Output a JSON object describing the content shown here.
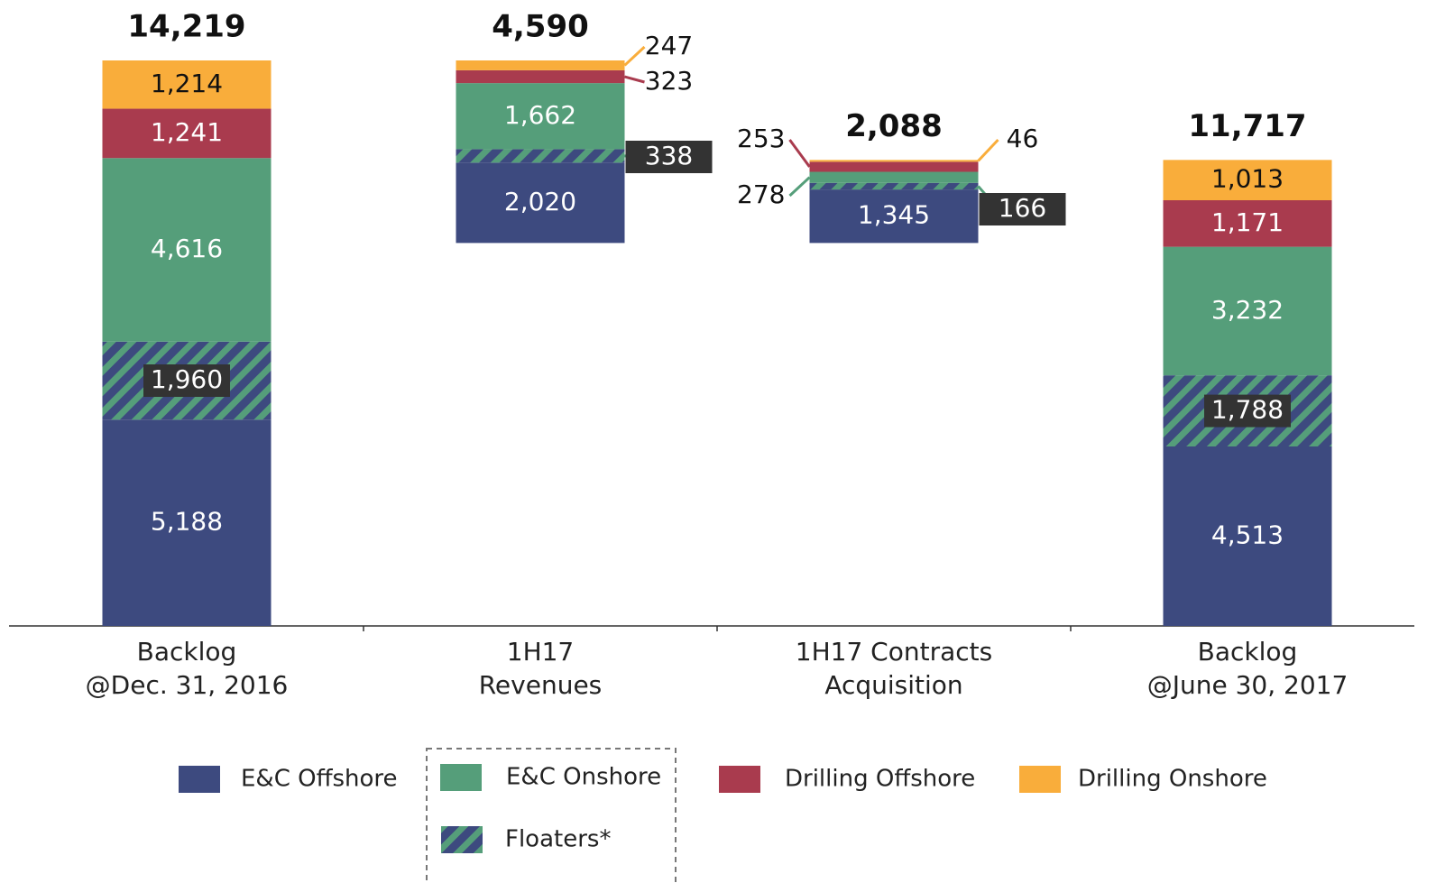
{
  "chart_data": {
    "type": "waterfall",
    "categories": [
      [
        "Backlog",
        "@Dec. 31, 2016"
      ],
      [
        "1H17",
        "Revenues"
      ],
      [
        "1H17 Contracts",
        "Acquisition"
      ],
      [
        "Backlog",
        "@June 30, 2017"
      ]
    ],
    "measures": [
      "absolute",
      "decrease",
      "increase",
      "absolute"
    ],
    "totals": [
      14219,
      4590,
      2088,
      11717
    ],
    "total_labels": [
      "14,219",
      "4,590",
      "2,088",
      "11,717"
    ],
    "series": [
      {
        "name": "E&C Offshore",
        "color": "#3d4a7f",
        "values": [
          5188,
          2020,
          1345,
          4513
        ],
        "value_labels": [
          "5,188",
          "2,020",
          "1,345",
          "4,513"
        ]
      },
      {
        "name": "Floaters*",
        "color": "#3d4a7f",
        "hatch_color": "#559e7a",
        "values": [
          1960,
          338,
          166,
          1788
        ],
        "value_labels": [
          "1,960",
          "338",
          "166",
          "1,788"
        ]
      },
      {
        "name": "E&C Onshore",
        "color": "#559e7a",
        "values": [
          4616,
          1662,
          278,
          3232
        ],
        "value_labels": [
          "4,616",
          "1,662",
          "278",
          "3,232"
        ]
      },
      {
        "name": "Drilling Offshore",
        "color": "#a93b4e",
        "values": [
          1241,
          323,
          253,
          1171
        ],
        "value_labels": [
          "1,241",
          "323",
          "253",
          "1,171"
        ]
      },
      {
        "name": "Drilling Onshore",
        "color": "#f9ad3b",
        "values": [
          1214,
          247,
          46,
          1013
        ],
        "value_labels": [
          "1,214",
          "247",
          "46",
          "1,013"
        ]
      }
    ]
  }
}
